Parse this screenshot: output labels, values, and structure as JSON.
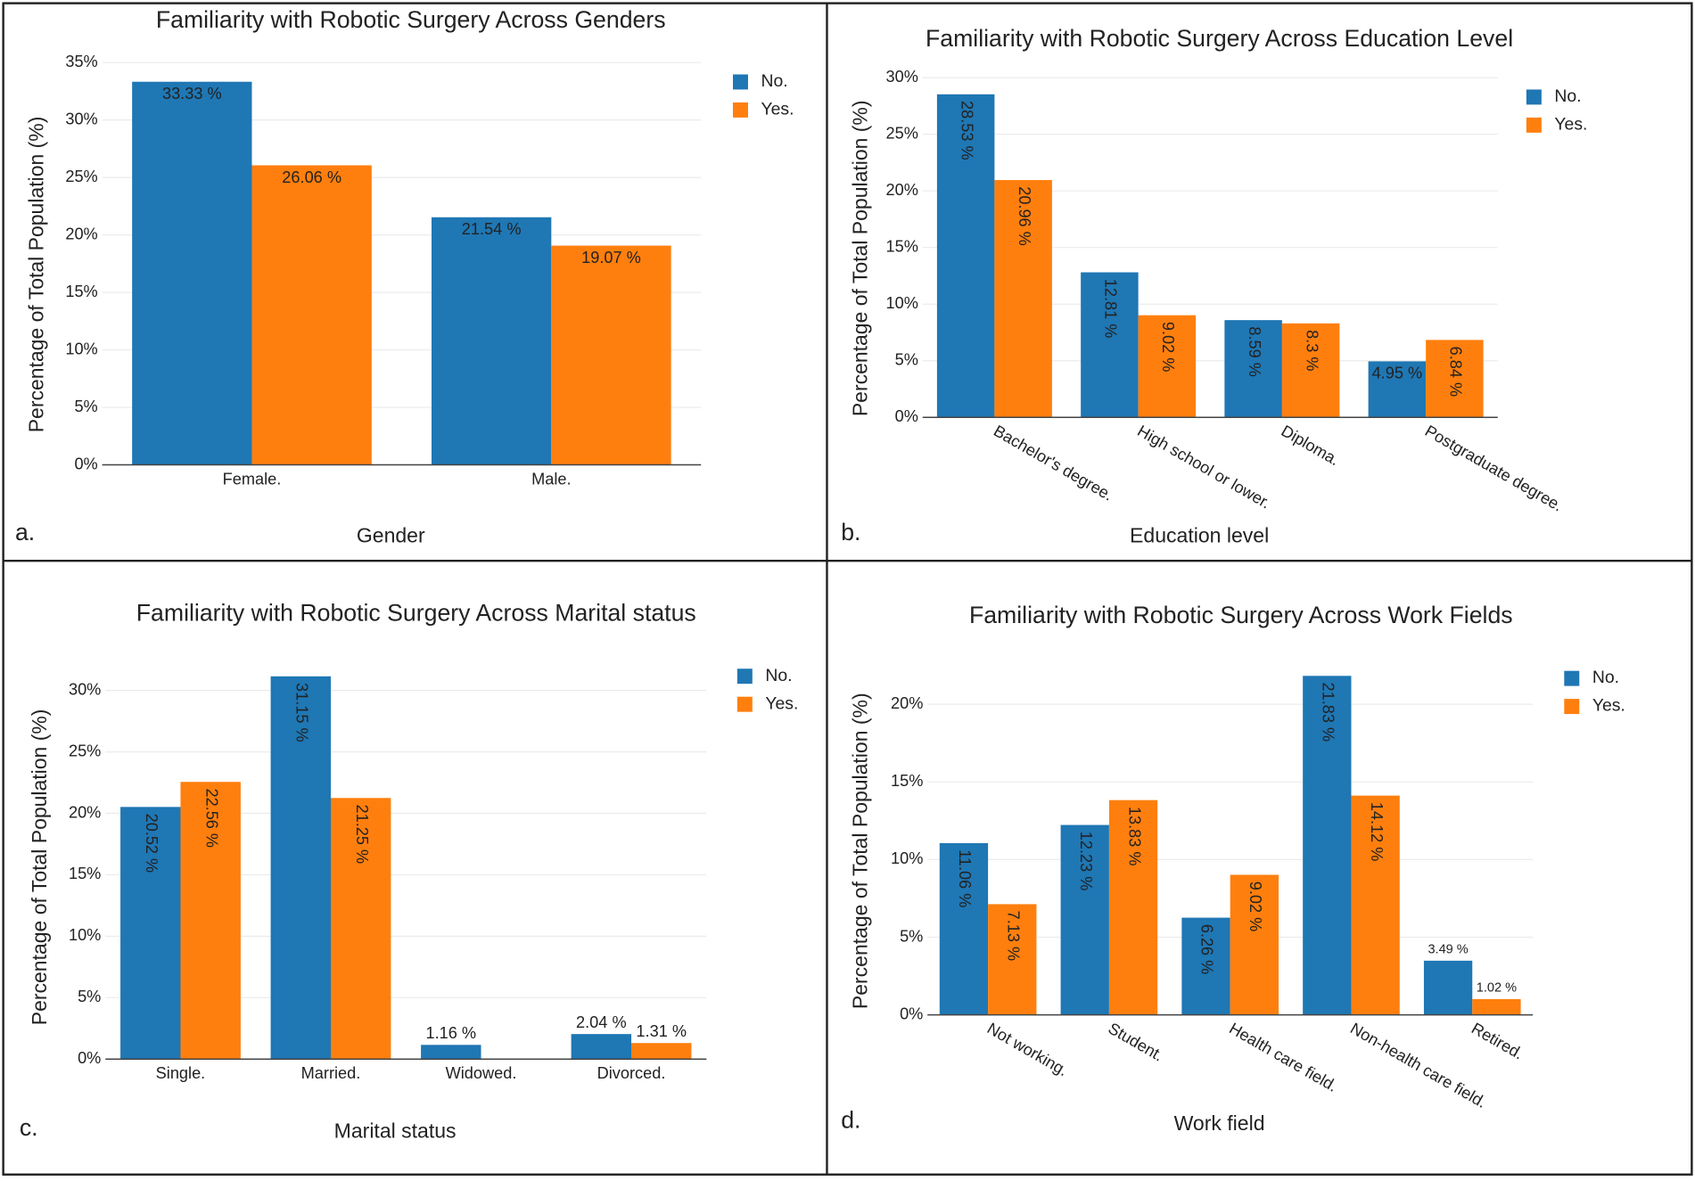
{
  "chart_data": [
    {
      "type": "bar",
      "panel_label": "a.",
      "title": "Familiarity with Robotic Surgery Across Genders",
      "x_label": "Gender",
      "y_label": "Percentage of Total Population (%)",
      "categories": [
        "Female.",
        "Male."
      ],
      "series": [
        {
          "name": "No.",
          "color": "#1f77b4",
          "values": [
            33.33,
            21.54
          ],
          "value_labels": [
            "33.33 %",
            "21.54 %"
          ]
        },
        {
          "name": "Yes.",
          "color": "#ff7f0e",
          "values": [
            26.06,
            19.07
          ],
          "value_labels": [
            "26.06 %",
            "19.07 %"
          ]
        }
      ],
      "ylim": [
        0,
        35
      ],
      "yticks": [
        {
          "value": 0,
          "label": "0%"
        },
        {
          "value": 5,
          "label": "5%"
        },
        {
          "value": 10,
          "label": "10%"
        },
        {
          "value": 15,
          "label": "15%"
        },
        {
          "value": 20,
          "label": "20%"
        },
        {
          "value": 25,
          "label": "25%"
        },
        {
          "value": 30,
          "label": "30%"
        },
        {
          "value": 35,
          "label": "35%"
        }
      ],
      "grid": true,
      "legend": "top-right"
    },
    {
      "type": "bar",
      "panel_label": "b.",
      "title": "Familiarity with Robotic Surgery Across Education Level",
      "x_label": "Education level",
      "y_label": "Percentage of Total Population (%)",
      "categories": [
        "Bachelor's degree.",
        "High school or lower.",
        "Diploma.",
        "Postgraduate degree."
      ],
      "series": [
        {
          "name": "No.",
          "color": "#1f77b4",
          "values": [
            28.53,
            12.81,
            8.59,
            4.95
          ],
          "value_labels": [
            "28.53 %",
            "12.81 %",
            "8.59 %",
            "4.95 %"
          ]
        },
        {
          "name": "Yes.",
          "color": "#ff7f0e",
          "values": [
            20.96,
            9.02,
            8.3,
            6.84
          ],
          "value_labels": [
            "20.96 %",
            "9.02 %",
            "8.3 %",
            "6.84 %"
          ]
        }
      ],
      "ylim": [
        0,
        30
      ],
      "yticks": [
        {
          "value": 0,
          "label": "0%"
        },
        {
          "value": 5,
          "label": "5%"
        },
        {
          "value": 10,
          "label": "10%"
        },
        {
          "value": 15,
          "label": "15%"
        },
        {
          "value": 20,
          "label": "20%"
        },
        {
          "value": 25,
          "label": "25%"
        },
        {
          "value": 30,
          "label": "30%"
        }
      ],
      "grid": true,
      "legend": "top-right"
    },
    {
      "type": "bar",
      "panel_label": "c.",
      "title": "Familiarity with Robotic Surgery Across Marital status",
      "x_label": "Marital status",
      "y_label": "Percentage of Total Population (%)",
      "categories": [
        "Single.",
        "Married.",
        "Widowed.",
        "Divorced."
      ],
      "series": [
        {
          "name": "No.",
          "color": "#1f77b4",
          "values": [
            20.52,
            31.15,
            1.16,
            2.04
          ],
          "value_labels": [
            "20.52 %",
            "31.15 %",
            "1.16 %",
            "2.04 %"
          ]
        },
        {
          "name": "Yes.",
          "color": "#ff7f0e",
          "values": [
            22.56,
            21.25,
            null,
            1.31
          ],
          "value_labels": [
            "22.56 %",
            "21.25 %",
            null,
            "1.31 %"
          ]
        }
      ],
      "ylim": [
        0,
        33
      ],
      "yticks": [
        {
          "value": 0,
          "label": "0%"
        },
        {
          "value": 5,
          "label": "5%"
        },
        {
          "value": 10,
          "label": "10%"
        },
        {
          "value": 15,
          "label": "15%"
        },
        {
          "value": 20,
          "label": "20%"
        },
        {
          "value": 25,
          "label": "25%"
        },
        {
          "value": 30,
          "label": "30%"
        }
      ],
      "grid": true,
      "legend": "top-right"
    },
    {
      "type": "bar",
      "panel_label": "d.",
      "title": "Familiarity with Robotic Surgery Across Work Fields",
      "x_label": "Work field",
      "y_label": "Percentage of Total Population (%)",
      "categories": [
        "Not working.",
        "Student.",
        "Health care field.",
        "Non-health care field.",
        "Retired."
      ],
      "series": [
        {
          "name": "No.",
          "color": "#1f77b4",
          "values": [
            11.06,
            12.23,
            6.26,
            21.83,
            3.49
          ],
          "value_labels": [
            "11.06 %",
            "12.23 %",
            "6.26 %",
            "21.83 %",
            "3.49 %"
          ]
        },
        {
          "name": "Yes.",
          "color": "#ff7f0e",
          "values": [
            7.13,
            13.83,
            9.02,
            14.12,
            1.02
          ],
          "value_labels": [
            "7.13 %",
            "13.83 %",
            "9.02 %",
            "14.12 %",
            "1.02 %"
          ]
        }
      ],
      "ylim": [
        0,
        22.5
      ],
      "yticks": [
        {
          "value": 0,
          "label": "0%"
        },
        {
          "value": 5,
          "label": "5%"
        },
        {
          "value": 10,
          "label": "10%"
        },
        {
          "value": 15,
          "label": "15%"
        },
        {
          "value": 20,
          "label": "20%"
        }
      ],
      "grid": true,
      "legend": "top-right"
    }
  ]
}
